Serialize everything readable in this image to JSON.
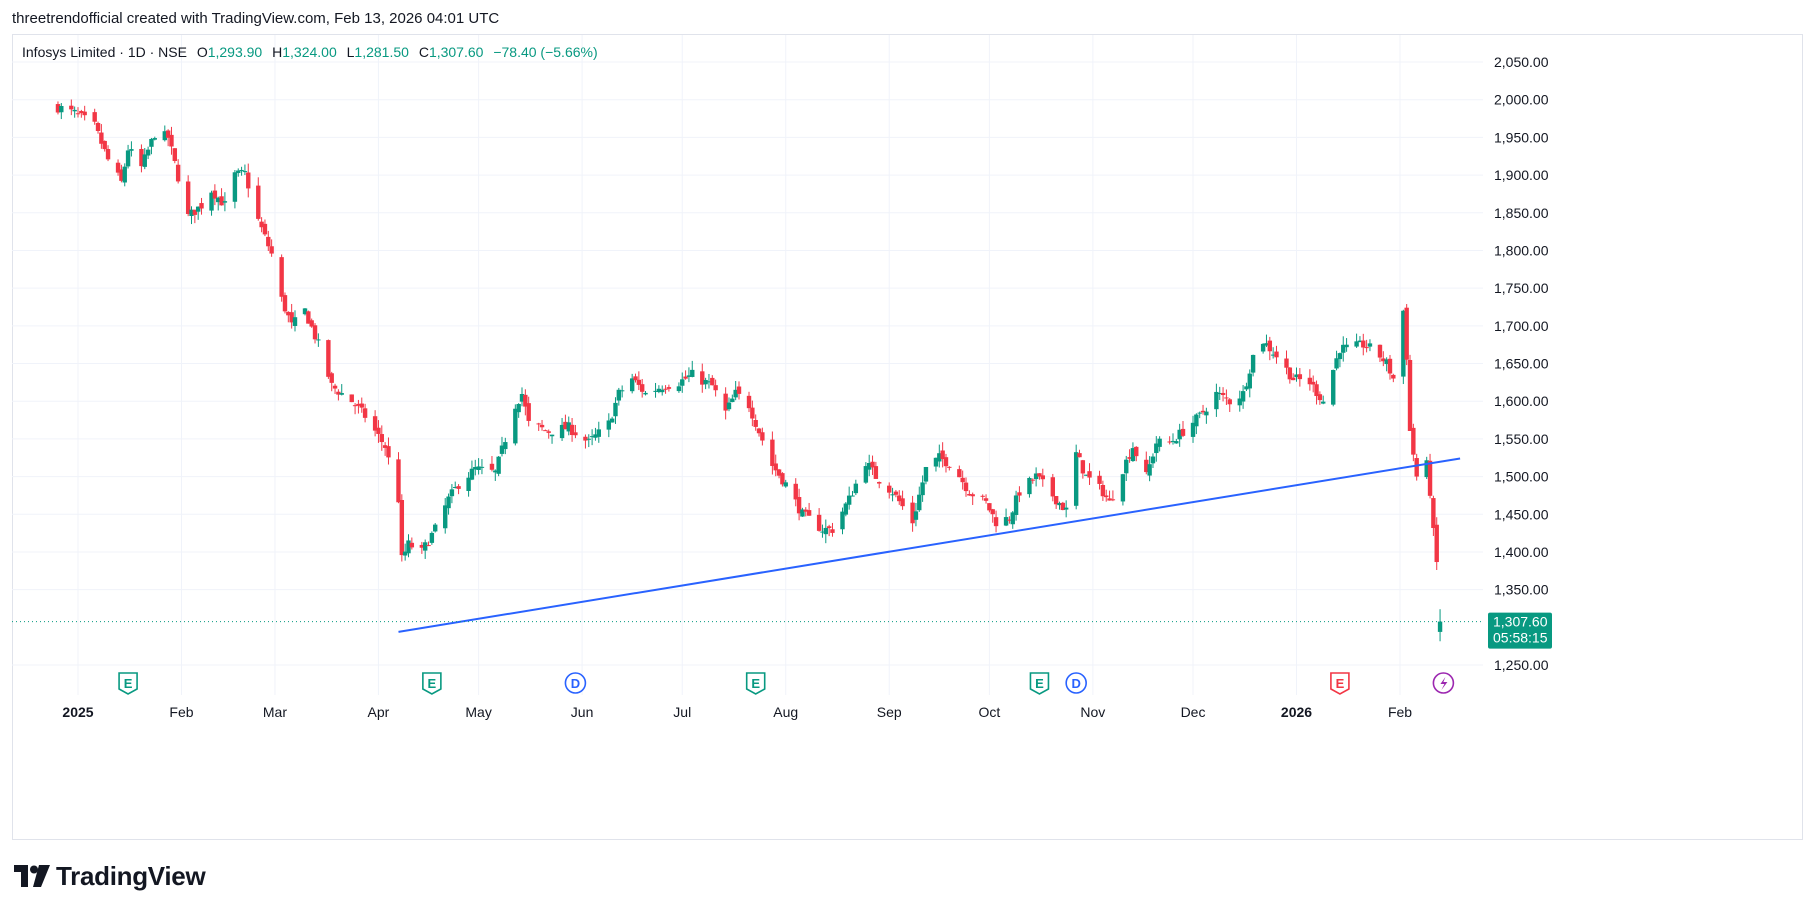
{
  "caption": "threetrendofficial created with TradingView.com, Feb 13, 2026 04:01 UTC",
  "legend": {
    "symbol": "Infosys Limited · 1D · NSE",
    "o_label": "O",
    "o_value": "1,293.90",
    "h_label": "H",
    "h_value": "1,324.00",
    "l_label": "L",
    "l_value": "1,281.50",
    "c_label": "C",
    "c_value": "1,307.60",
    "change": "−78.40 (−5.66%)"
  },
  "brand": {
    "name": "TradingView",
    "icon": "tradingview-logo-icon"
  },
  "colors": {
    "up": "#089981",
    "down": "#f23645",
    "trendline": "#2962ff",
    "grid": "#f0f3fa",
    "price_tag": "#089981"
  },
  "chart_data": {
    "type": "candlestick",
    "symbol": "Infosys Limited",
    "interval": "1D",
    "exchange": "NSE",
    "y_axis": {
      "ylim": [
        1215,
        2080
      ],
      "ticks": [
        "2,050.00",
        "2,000.00",
        "1,950.00",
        "1,900.00",
        "1,850.00",
        "1,800.00",
        "1,750.00",
        "1,700.00",
        "1,650.00",
        "1,600.00",
        "1,550.00",
        "1,500.00",
        "1,450.00",
        "1,400.00",
        "1,350.00",
        "1,250.00"
      ],
      "tick_values": [
        2050,
        2000,
        1950,
        1900,
        1850,
        1800,
        1750,
        1700,
        1650,
        1600,
        1550,
        1500,
        1450,
        1400,
        1350,
        1250
      ]
    },
    "x_axis": {
      "labels": [
        "2025",
        "Feb",
        "Mar",
        "Apr",
        "May",
        "Jun",
        "Jul",
        "Aug",
        "Sep",
        "Oct",
        "Nov",
        "Dec",
        "2026",
        "Feb"
      ],
      "bold_labels": [
        "2025",
        "2026"
      ],
      "dates": [
        "2025-01-01",
        "2025-02-01",
        "2025-03-01",
        "2025-04-01",
        "2025-05-01",
        "2025-06-01",
        "2025-07-01",
        "2025-08-01",
        "2025-09-01",
        "2025-10-01",
        "2025-11-01",
        "2025-12-01",
        "2026-01-01",
        "2026-02-01"
      ]
    },
    "last_price": {
      "value": 1307.6,
      "label": "1,307.60",
      "countdown": "05:58:15"
    },
    "trendline": {
      "start": {
        "date": "2025-04-07",
        "price": 1294
      },
      "end": {
        "date": "2026-02-19",
        "price": 1524
      }
    },
    "events": [
      {
        "type": "earnings",
        "letter": "E",
        "date": "2025-01-16"
      },
      {
        "type": "earnings",
        "letter": "E",
        "date": "2025-04-17"
      },
      {
        "type": "dividend",
        "letter": "D",
        "date": "2025-05-30"
      },
      {
        "type": "earnings",
        "letter": "E",
        "date": "2025-07-23"
      },
      {
        "type": "earnings",
        "letter": "E",
        "date": "2025-10-16"
      },
      {
        "type": "dividend",
        "letter": "D",
        "date": "2025-10-27"
      },
      {
        "type": "earnings",
        "letter": "E",
        "date": "2026-01-14"
      },
      {
        "type": "news",
        "letter": "",
        "date": "2026-02-14"
      }
    ],
    "candle_anchors": [
      [
        "2024-12-26",
        1990
      ],
      [
        "2024-12-31",
        1982
      ],
      [
        "2025-01-06",
        1965
      ],
      [
        "2025-01-10",
        1920
      ],
      [
        "2025-01-14",
        1890
      ],
      [
        "2025-01-16",
        1935
      ],
      [
        "2025-01-20",
        1910
      ],
      [
        "2025-01-24",
        1955
      ],
      [
        "2025-01-28",
        1950
      ],
      [
        "2025-02-03",
        1845
      ],
      [
        "2025-02-07",
        1860
      ],
      [
        "2025-02-10",
        1880
      ],
      [
        "2025-02-14",
        1860
      ],
      [
        "2025-02-17",
        1900
      ],
      [
        "2025-02-20",
        1902
      ],
      [
        "2025-02-24",
        1840
      ],
      [
        "2025-02-28",
        1795
      ],
      [
        "2025-03-03",
        1735
      ],
      [
        "2025-03-06",
        1700
      ],
      [
        "2025-03-10",
        1720
      ],
      [
        "2025-03-14",
        1675
      ],
      [
        "2025-03-18",
        1620
      ],
      [
        "2025-03-24",
        1600
      ],
      [
        "2025-03-28",
        1580
      ],
      [
        "2025-04-03",
        1540
      ],
      [
        "2025-04-07",
        1470
      ],
      [
        "2025-04-08",
        1390
      ],
      [
        "2025-04-10",
        1410
      ],
      [
        "2025-04-14",
        1400
      ],
      [
        "2025-04-18",
        1430
      ],
      [
        "2025-04-22",
        1470
      ],
      [
        "2025-04-25",
        1490
      ],
      [
        "2025-04-30",
        1510
      ],
      [
        "2025-05-06",
        1505
      ],
      [
        "2025-05-12",
        1595
      ],
      [
        "2025-05-14",
        1610
      ],
      [
        "2025-05-16",
        1570
      ],
      [
        "2025-05-22",
        1560
      ],
      [
        "2025-05-28",
        1565
      ],
      [
        "2025-06-03",
        1545
      ],
      [
        "2025-06-09",
        1570
      ],
      [
        "2025-06-12",
        1610
      ],
      [
        "2025-06-16",
        1630
      ],
      [
        "2025-06-20",
        1610
      ],
      [
        "2025-06-25",
        1620
      ],
      [
        "2025-06-30",
        1625
      ],
      [
        "2025-07-04",
        1635
      ],
      [
        "2025-07-10",
        1620
      ],
      [
        "2025-07-14",
        1585
      ],
      [
        "2025-07-17",
        1610
      ],
      [
        "2025-07-21",
        1595
      ],
      [
        "2025-07-24",
        1560
      ],
      [
        "2025-07-28",
        1515
      ],
      [
        "2025-08-01",
        1490
      ],
      [
        "2025-08-06",
        1450
      ],
      [
        "2025-08-12",
        1430
      ],
      [
        "2025-08-15",
        1430
      ],
      [
        "2025-08-20",
        1470
      ],
      [
        "2025-08-25",
        1520
      ],
      [
        "2025-08-28",
        1500
      ],
      [
        "2025-09-02",
        1480
      ],
      [
        "2025-09-08",
        1440
      ],
      [
        "2025-09-12",
        1510
      ],
      [
        "2025-09-16",
        1525
      ],
      [
        "2025-09-20",
        1515
      ],
      [
        "2025-09-25",
        1480
      ],
      [
        "2025-09-30",
        1465
      ],
      [
        "2025-10-03",
        1440
      ],
      [
        "2025-10-07",
        1445
      ],
      [
        "2025-10-10",
        1480
      ],
      [
        "2025-10-15",
        1500
      ],
      [
        "2025-10-20",
        1475
      ],
      [
        "2025-10-24",
        1455
      ],
      [
        "2025-10-27",
        1530
      ],
      [
        "2025-10-30",
        1500
      ],
      [
        "2025-11-04",
        1480
      ],
      [
        "2025-11-06",
        1465
      ],
      [
        "2025-11-10",
        1510
      ],
      [
        "2025-11-13",
        1540
      ],
      [
        "2025-11-17",
        1500
      ],
      [
        "2025-11-20",
        1545
      ],
      [
        "2025-11-24",
        1545
      ],
      [
        "2025-11-28",
        1560
      ],
      [
        "2025-12-03",
        1580
      ],
      [
        "2025-12-08",
        1610
      ],
      [
        "2025-12-12",
        1600
      ],
      [
        "2025-12-16",
        1610
      ],
      [
        "2025-12-19",
        1660
      ],
      [
        "2025-12-22",
        1680
      ],
      [
        "2025-12-26",
        1660
      ],
      [
        "2025-12-31",
        1630
      ],
      [
        "2026-01-05",
        1625
      ],
      [
        "2026-01-09",
        1600
      ],
      [
        "2026-01-14",
        1670
      ],
      [
        "2026-01-17",
        1670
      ],
      [
        "2026-01-21",
        1675
      ],
      [
        "2026-01-25",
        1665
      ],
      [
        "2026-01-28",
        1650
      ],
      [
        "2026-01-30",
        1630
      ],
      [
        "2026-02-02",
        1720
      ],
      [
        "2026-02-03",
        1660
      ],
      [
        "2026-02-04",
        1560
      ],
      [
        "2026-02-05",
        1530
      ],
      [
        "2026-02-06",
        1500
      ],
      [
        "2026-02-09",
        1515
      ],
      [
        "2026-02-10",
        1480
      ],
      [
        "2026-02-11",
        1425
      ],
      [
        "2026-02-12",
        1385
      ],
      [
        "2026-02-13",
        1307.6
      ]
    ]
  }
}
